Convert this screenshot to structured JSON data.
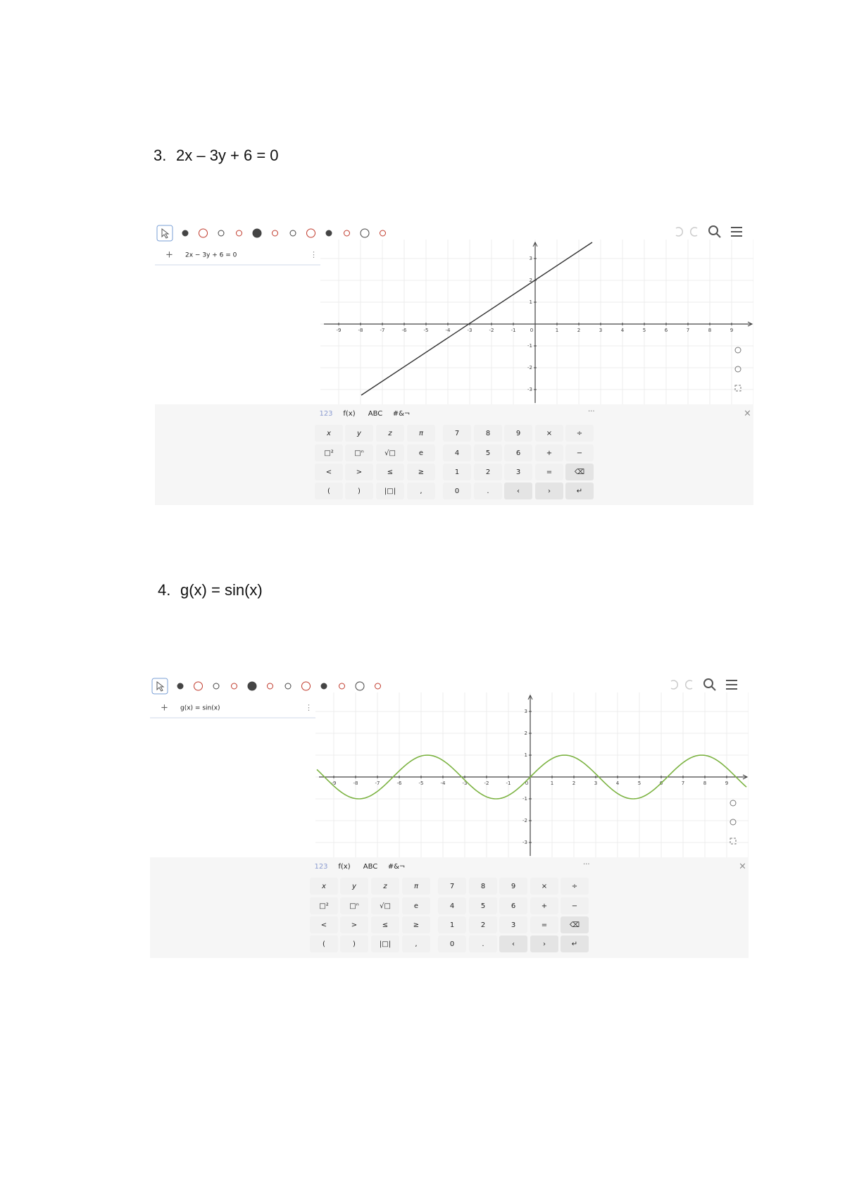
{
  "items": [
    {
      "number": "3.",
      "equation": "2x – 3y + 6 = 0",
      "screenshot": {
        "input": "2x − 3y + 6 = 0",
        "xticks": [
          -9,
          -8,
          -7,
          -6,
          -5,
          -4,
          -3,
          -2,
          -1,
          0,
          1,
          2,
          3,
          4,
          5,
          6,
          7,
          8,
          9
        ],
        "yticks": [
          -3,
          -2,
          -1,
          1,
          2,
          3
        ],
        "keyboard_tabs": [
          "123",
          "f(x)",
          "ABC",
          "#&¬"
        ],
        "keys": [
          [
            "x",
            "y",
            "z",
            "π",
            "7",
            "8",
            "9",
            "×",
            "÷"
          ],
          [
            "□²",
            "□ⁿ",
            "√□",
            "e",
            "4",
            "5",
            "6",
            "+",
            "−"
          ],
          [
            "<",
            ">",
            "≤",
            "≥",
            "1",
            "2",
            "3",
            "=",
            "⌫"
          ],
          [
            "(",
            ")",
            "|□|",
            ",",
            "0",
            ".",
            "‹",
            "›",
            "↵"
          ]
        ]
      }
    },
    {
      "number": "4.",
      "equation": "g(x) = sin(x)",
      "screenshot": {
        "input": "g(x) = sin(x)",
        "xticks": [
          -9,
          -8,
          -7,
          -6,
          -5,
          -4,
          -3,
          -2,
          -1,
          0,
          1,
          2,
          3,
          4,
          5,
          6,
          7,
          8,
          9
        ],
        "yticks": [
          -3,
          -2,
          -1,
          1,
          2,
          3
        ],
        "keyboard_tabs": [
          "123",
          "f(x)",
          "ABC",
          "#&¬"
        ],
        "keys": [
          [
            "x",
            "y",
            "z",
            "π",
            "7",
            "8",
            "9",
            "×",
            "÷"
          ],
          [
            "□²",
            "□ⁿ",
            "√□",
            "e",
            "4",
            "5",
            "6",
            "+",
            "−"
          ],
          [
            "<",
            ">",
            "≤",
            "≥",
            "1",
            "2",
            "3",
            "=",
            "⌫"
          ],
          [
            "(",
            ")",
            "|□|",
            ",",
            "0",
            ".",
            "‹",
            "›",
            "↵"
          ]
        ]
      }
    }
  ]
}
